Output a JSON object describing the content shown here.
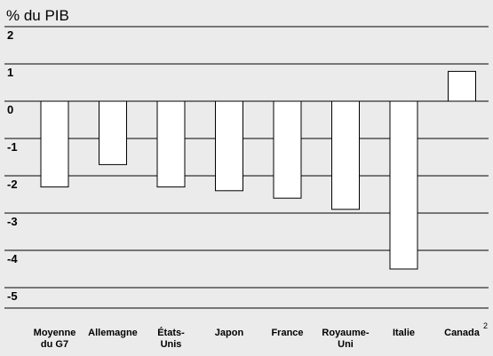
{
  "chart_data": {
    "type": "bar",
    "ylabel": "% du PIB",
    "ylim": [
      -5.5,
      2
    ],
    "yticks": [
      "2",
      "1",
      "0",
      "-1",
      "-2",
      "-3",
      "-4",
      "-5"
    ],
    "categories": [
      [
        "Moyenne",
        "du G7"
      ],
      [
        "Allemagne"
      ],
      [
        "États-",
        "Unis"
      ],
      [
        "Japon"
      ],
      [
        "France"
      ],
      [
        "Royaume-",
        "Uni"
      ],
      [
        "Italie"
      ],
      [
        "Canada"
      ]
    ],
    "footnote_marks": [
      "",
      "",
      "",
      "",
      "",
      "",
      "",
      "2"
    ],
    "values": [
      -2.3,
      -1.7,
      -2.3,
      -2.4,
      -2.6,
      -2.9,
      -4.5,
      0.8
    ],
    "grid": true,
    "bar_fill": "#ffffff",
    "background": "#ebebeb"
  }
}
